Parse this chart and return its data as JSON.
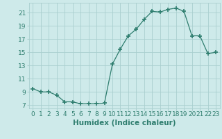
{
  "x": [
    0,
    1,
    2,
    3,
    4,
    5,
    6,
    7,
    8,
    9,
    10,
    11,
    12,
    13,
    14,
    15,
    16,
    17,
    18,
    19,
    20,
    21,
    22,
    23
  ],
  "y": [
    9.5,
    9.0,
    9.0,
    8.5,
    7.5,
    7.5,
    7.2,
    7.2,
    7.2,
    7.3,
    13.2,
    15.5,
    17.5,
    18.5,
    20.0,
    21.2,
    21.1,
    21.5,
    21.7,
    21.2,
    17.5,
    17.5,
    14.8,
    15.0
  ],
  "line_color": "#2e7d6e",
  "marker": "+",
  "marker_size": 4,
  "bg_color": "#ceeaea",
  "grid_color": "#aacfcf",
  "xlabel": "Humidex (Indice chaleur)",
  "xlabel_fontsize": 7.5,
  "tick_color": "#2e7d6e",
  "tick_fontsize": 6.5,
  "xlim": [
    -0.5,
    23.5
  ],
  "ylim": [
    6.5,
    22.5
  ],
  "yticks": [
    7,
    9,
    11,
    13,
    15,
    17,
    19,
    21
  ],
  "xticks": [
    0,
    1,
    2,
    3,
    4,
    5,
    6,
    7,
    8,
    9,
    10,
    11,
    12,
    13,
    14,
    15,
    16,
    17,
    18,
    19,
    20,
    21,
    22,
    23
  ]
}
